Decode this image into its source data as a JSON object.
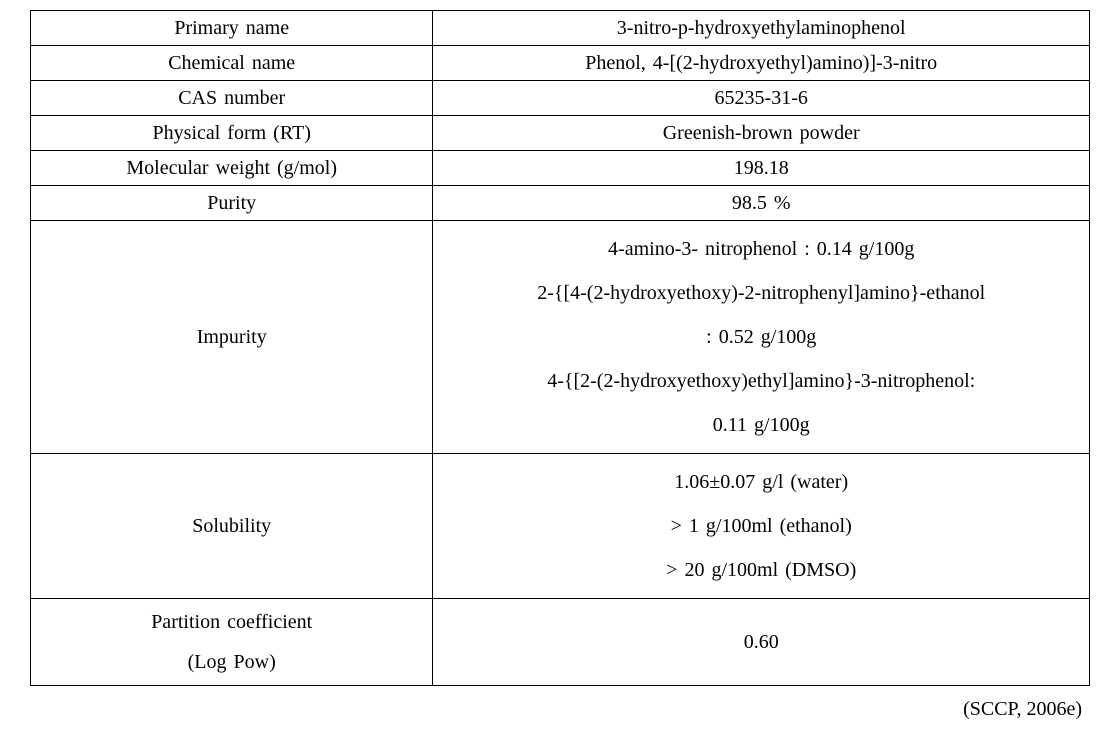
{
  "table": {
    "rows": [
      {
        "label": "Primary name",
        "value": "3-nitro-p-hydroxyethylaminophenol"
      },
      {
        "label": "Chemical name",
        "value": "Phenol, 4-[(2-hydroxyethyl)amino)]-3-nitro"
      },
      {
        "label": "CAS number",
        "value": "65235-31-6"
      },
      {
        "label": "Physical form (RT)",
        "value": "Greenish-brown powder"
      },
      {
        "label": "Molecular weight (g/mol)",
        "value": "198.18"
      },
      {
        "label": "Purity",
        "value": "98.5 %"
      }
    ],
    "impurity": {
      "label": "Impurity",
      "lines": [
        "4-amino-3- nitrophenol : 0.14 g/100g",
        "2-{[4-(2-hydroxyethoxy)-2-nitrophenyl]amino}-ethanol",
        ": 0.52 g/100g",
        "4-{[2-(2-hydroxyethoxy)ethyl]amino}-3-nitrophenol:",
        "0.11 g/100g"
      ]
    },
    "solubility": {
      "label": "Solubility",
      "lines": [
        "1.06±0.07 g/l (water)",
        "> 1 g/100ml (ethanol)",
        "> 20 g/100ml (DMSO)"
      ]
    },
    "partition": {
      "label_line1": "Partition coefficient",
      "label_line2": "(Log Pow)",
      "value": "0.60"
    }
  },
  "citation": "(SCCP, 2006e)"
}
